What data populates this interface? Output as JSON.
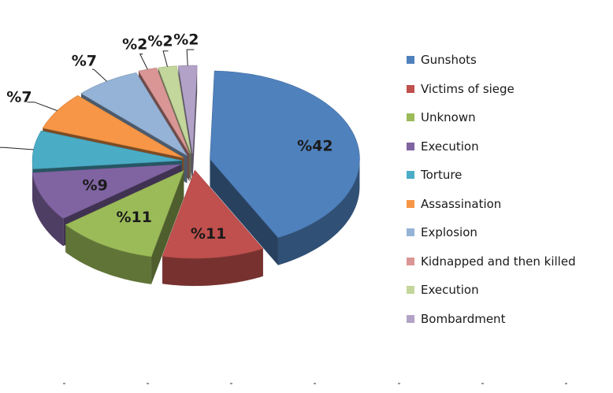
{
  "chart_data": {
    "type": "pie",
    "title": "",
    "value_prefix": "%",
    "slices": [
      {
        "label": "Gunshots",
        "value": 42,
        "color": "#4F81BD"
      },
      {
        "label": "Victims of siege",
        "value": 11,
        "color": "#C0504D"
      },
      {
        "label": "Unknown",
        "value": 11,
        "color": "#9BBB59"
      },
      {
        "label": "Execution",
        "value": 9,
        "color": "#8064A2"
      },
      {
        "label": "Torture",
        "value": 7,
        "color": "#4BACC6"
      },
      {
        "label": "Assassination",
        "value": 7,
        "color": "#F79646"
      },
      {
        "label": "Explosion",
        "value": 7,
        "color": "#95B3D7"
      },
      {
        "label": "Kidnapped  and then killed",
        "value": 2,
        "color": "#D99694"
      },
      {
        "label": "Execution",
        "value": 2,
        "color": "#C3D69B"
      },
      {
        "label": "Bombardment",
        "value": 2,
        "color": "#B2A2C7"
      }
    ],
    "legend_position": "right",
    "style": "3d-exploded"
  }
}
